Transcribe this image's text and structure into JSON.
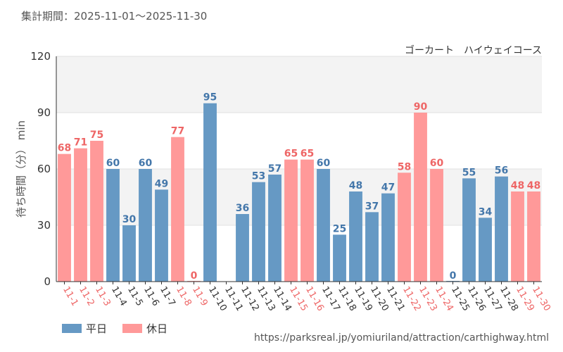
{
  "period_label": "集計期間：2025-11-01～2025-11-30",
  "source_url": "https://parksreal.jp/yomiuriland/attraction/carthighway.html",
  "chart_data": {
    "type": "bar",
    "title": "ゴーカート　ハイウェイコース",
    "ylabel": "待ち時間（分） min",
    "xlabel": "",
    "ylim": [
      0,
      120
    ],
    "yticks": [
      0,
      30,
      60,
      90,
      120
    ],
    "categories": [
      "11-1",
      "11-2",
      "11-3",
      "11-4",
      "11-5",
      "11-6",
      "11-7",
      "11-8",
      "11-9",
      "11-10",
      "11-11",
      "11-12",
      "11-13",
      "11-14",
      "11-15",
      "11-16",
      "11-17",
      "11-18",
      "11-19",
      "11-20",
      "11-21",
      "11-22",
      "11-23",
      "11-24",
      "11-25",
      "11-26",
      "11-27",
      "11-28",
      "11-29",
      "11-30"
    ],
    "values": [
      68,
      71,
      75,
      60,
      30,
      60,
      49,
      77,
      0,
      95,
      null,
      36,
      53,
      57,
      65,
      65,
      60,
      25,
      48,
      37,
      47,
      58,
      90,
      60,
      0,
      55,
      34,
      56,
      48,
      48
    ],
    "day_type": [
      "holiday",
      "holiday",
      "holiday",
      "weekday",
      "weekday",
      "weekday",
      "weekday",
      "holiday",
      "holiday",
      "weekday",
      "weekday",
      "weekday",
      "weekday",
      "weekday",
      "holiday",
      "holiday",
      "weekday",
      "weekday",
      "weekday",
      "weekday",
      "weekday",
      "holiday",
      "holiday",
      "holiday",
      "weekday",
      "weekday",
      "weekday",
      "weekday",
      "holiday",
      "holiday"
    ],
    "legend": [
      {
        "key": "weekday",
        "label": "平日",
        "color": "#6699c4"
      },
      {
        "key": "holiday",
        "label": "休日",
        "color": "#ff9999"
      }
    ],
    "label_colors": {
      "weekday": "#4477aa",
      "holiday": "#ee6666"
    },
    "axis_label_colors": {
      "weekday": "#333333",
      "holiday": "#ee6666"
    }
  }
}
